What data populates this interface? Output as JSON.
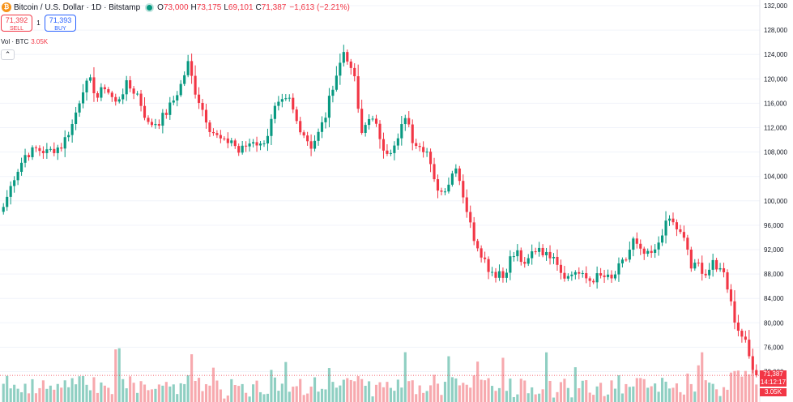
{
  "header": {
    "coin_icon": "bitcoin-icon",
    "symbol_title": "Bitcoin / U.S. Dollar · 1D · Bitstamp",
    "open_label": "O",
    "open_value": "73,000",
    "high_label": "H",
    "high_value": "73,175",
    "low_label": "L",
    "low_value": "69,101",
    "close_label": "C",
    "close_value": "71,387",
    "change": "−1,613 (−2.21%)"
  },
  "trade": {
    "sell_price": "71,392",
    "sell_label": "SELL",
    "spread": "1",
    "buy_price": "71,393",
    "buy_label": "BUY"
  },
  "volume_legend": {
    "label": "Vol · BTC",
    "value": "3.05K"
  },
  "collapse_icon": "chevron-up-icon",
  "price_tags": {
    "last_price": "71,387",
    "countdown": "14:12:17",
    "last_volume": "3.05K"
  },
  "colors": {
    "up": "#089981",
    "down": "#f23645",
    "up_volume": "#8fcfc2",
    "down_volume": "#f7a9ae"
  },
  "chart_data": {
    "type": "candlestick",
    "ylim": [
      68000,
      132000
    ],
    "y_ticks": [
      "132,000",
      "128,000",
      "124,000",
      "120,000",
      "116,000",
      "112,000",
      "108,000",
      "104,000",
      "100,000",
      "96,000",
      "92,000",
      "88,000",
      "84,000",
      "80,000",
      "76,000",
      "72,000"
    ],
    "y_tick_values": [
      132000,
      128000,
      124000,
      120000,
      116000,
      112000,
      108000,
      104000,
      100000,
      96000,
      92000,
      88000,
      84000,
      80000,
      76000,
      72000
    ],
    "last_price_value": 71387,
    "anchors": [
      [
        0,
        99000
      ],
      [
        3,
        104000
      ],
      [
        6,
        107500
      ],
      [
        9,
        108500
      ],
      [
        12,
        108000
      ],
      [
        16,
        109000
      ],
      [
        19,
        112500
      ],
      [
        22,
        118500
      ],
      [
        24,
        119500
      ],
      [
        26,
        117000
      ],
      [
        28,
        118800
      ],
      [
        31,
        116000
      ],
      [
        34,
        119000
      ],
      [
        37,
        117500
      ],
      [
        40,
        112500
      ],
      [
        43,
        113000
      ],
      [
        45,
        114500
      ],
      [
        47,
        116500
      ],
      [
        49,
        119000
      ],
      [
        51,
        122500
      ],
      [
        53,
        118000
      ],
      [
        55,
        115000
      ],
      [
        57,
        112000
      ],
      [
        59,
        110500
      ],
      [
        61,
        109500
      ],
      [
        63,
        110000
      ],
      [
        65,
        108000
      ],
      [
        67,
        109000
      ],
      [
        69,
        110000
      ],
      [
        71,
        109000
      ],
      [
        73,
        111000
      ],
      [
        75,
        115000
      ],
      [
        77,
        116000
      ],
      [
        79,
        116500
      ],
      [
        81,
        113000
      ],
      [
        83,
        111000
      ],
      [
        85,
        109000
      ],
      [
        87,
        111000
      ],
      [
        89,
        114000
      ],
      [
        91,
        119000
      ],
      [
        93,
        122500
      ],
      [
        94,
        124500
      ],
      [
        95,
        123500
      ],
      [
        96,
        121000
      ],
      [
        97,
        120500
      ],
      [
        98,
        114500
      ],
      [
        99,
        111000
      ],
      [
        101,
        114000
      ],
      [
        103,
        112000
      ],
      [
        105,
        109000
      ],
      [
        107,
        107500
      ],
      [
        109,
        110000
      ],
      [
        111,
        114000
      ],
      [
        113,
        110000
      ],
      [
        115,
        109500
      ],
      [
        117,
        108000
      ],
      [
        119,
        103000
      ],
      [
        121,
        101500
      ],
      [
        123,
        103000
      ],
      [
        125,
        106000
      ],
      [
        127,
        101000
      ],
      [
        129,
        96000
      ],
      [
        130,
        94000
      ],
      [
        132,
        91500
      ],
      [
        134,
        89000
      ],
      [
        136,
        88000
      ],
      [
        137,
        88500
      ],
      [
        138,
        87500
      ],
      [
        140,
        90500
      ],
      [
        142,
        91500
      ],
      [
        144,
        89000
      ],
      [
        146,
        91500
      ],
      [
        148,
        92500
      ],
      [
        150,
        91000
      ],
      [
        152,
        91500
      ],
      [
        154,
        88500
      ],
      [
        156,
        87500
      ],
      [
        158,
        88500
      ],
      [
        160,
        87500
      ],
      [
        162,
        87000
      ],
      [
        164,
        87500
      ],
      [
        166,
        87500
      ],
      [
        168,
        87000
      ],
      [
        170,
        89000
      ],
      [
        172,
        90500
      ],
      [
        174,
        93500
      ],
      [
        176,
        91500
      ],
      [
        178,
        91000
      ],
      [
        180,
        91500
      ],
      [
        182,
        95000
      ],
      [
        184,
        97000
      ],
      [
        186,
        95500
      ],
      [
        188,
        93500
      ],
      [
        189,
        92000
      ],
      [
        190,
        89000
      ],
      [
        192,
        89500
      ],
      [
        194,
        88000
      ],
      [
        196,
        89500
      ],
      [
        197,
        88500
      ],
      [
        198,
        89500
      ],
      [
        199,
        88000
      ],
      [
        200,
        86000
      ],
      [
        201,
        84000
      ],
      [
        202,
        80000
      ],
      [
        203,
        79000
      ],
      [
        204,
        78500
      ],
      [
        205,
        76500
      ],
      [
        206,
        74500
      ],
      [
        207,
        73000
      ],
      [
        208,
        71387
      ]
    ]
  }
}
